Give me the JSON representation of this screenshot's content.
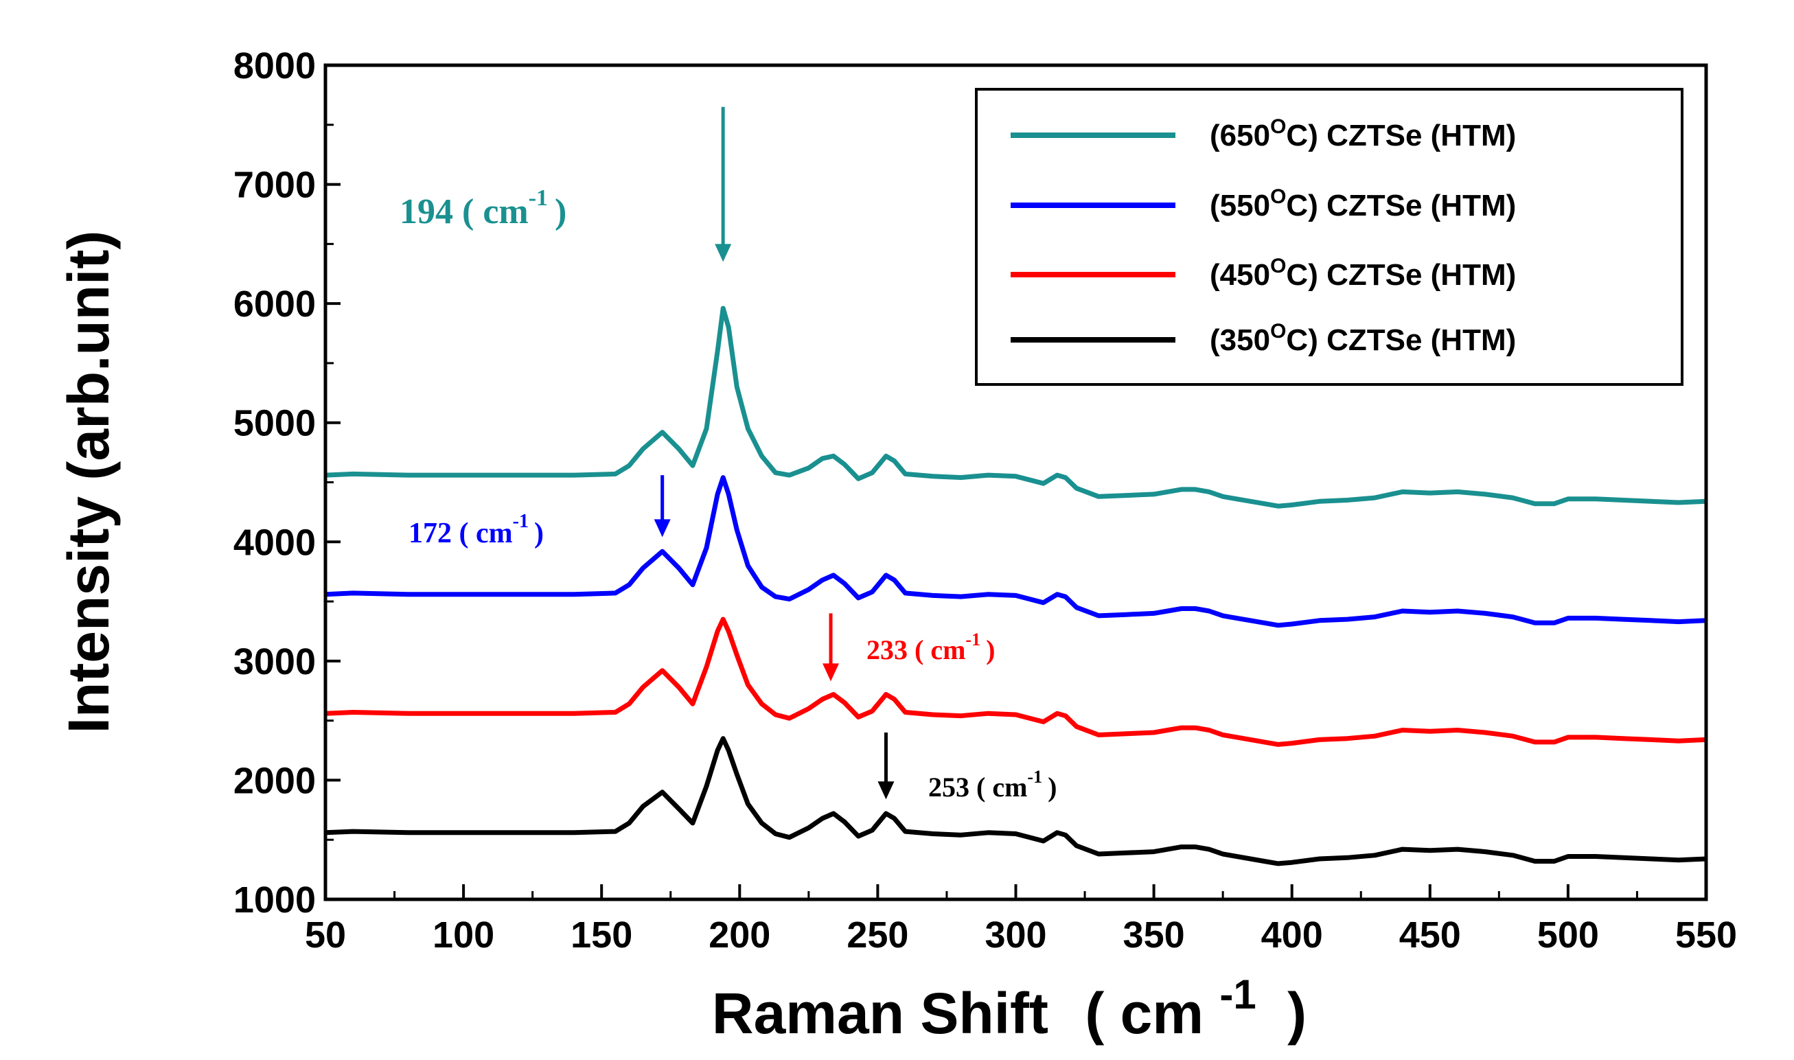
{
  "chart_data": {
    "type": "line",
    "title": "",
    "xlabel": "Raman Shift",
    "xlabel_unit": "( cm",
    "xlabel_unit_sup": "-1",
    "xlabel_unit_close": ")",
    "ylabel": "Intensity (arb.unit)",
    "xlim": [
      50,
      550
    ],
    "ylim": [
      1000,
      8000
    ],
    "xticks": [
      50,
      100,
      150,
      200,
      250,
      300,
      350,
      400,
      450,
      500,
      550
    ],
    "yticks": [
      1000,
      2000,
      3000,
      4000,
      5000,
      6000,
      7000,
      8000
    ],
    "legend_position": "top-right",
    "series": [
      {
        "name": "(650°C) CZTSe (HTM)",
        "label_prefix": "(650",
        "label_sup": "O",
        "label_suffix": "C) CZTSe (HTM)",
        "color": "#1a9090",
        "x": [
          50,
          60,
          80,
          100,
          120,
          140,
          155,
          160,
          165,
          172,
          178,
          183,
          188,
          192,
          194,
          196,
          199,
          203,
          208,
          213,
          218,
          225,
          230,
          234,
          238,
          243,
          248,
          253,
          256,
          260,
          270,
          280,
          290,
          300,
          310,
          315,
          318,
          322,
          330,
          340,
          350,
          355,
          360,
          365,
          370,
          375,
          380,
          390,
          395,
          400,
          410,
          420,
          430,
          440,
          450,
          460,
          470,
          480,
          488,
          495,
          500,
          510,
          520,
          530,
          540,
          550
        ],
        "y": [
          4560,
          4570,
          4560,
          4560,
          4560,
          4560,
          4570,
          4640,
          4780,
          4920,
          4780,
          4640,
          4950,
          5600,
          5960,
          5800,
          5300,
          4950,
          4720,
          4580,
          4560,
          4620,
          4700,
          4720,
          4650,
          4530,
          4580,
          4720,
          4680,
          4570,
          4550,
          4540,
          4560,
          4550,
          4490,
          4560,
          4540,
          4450,
          4380,
          4390,
          4400,
          4420,
          4440,
          4440,
          4420,
          4380,
          4360,
          4320,
          4300,
          4310,
          4340,
          4350,
          4370,
          4420,
          4410,
          4420,
          4400,
          4370,
          4320,
          4320,
          4360,
          4360,
          4350,
          4340,
          4330,
          4340
        ]
      },
      {
        "name": "(550°C) CZTSe (HTM)",
        "label_prefix": "(550",
        "label_sup": "O",
        "label_suffix": "C) CZTSe (HTM)",
        "color": "#0000ff",
        "x": [
          50,
          60,
          80,
          100,
          120,
          140,
          155,
          160,
          165,
          172,
          178,
          183,
          188,
          192,
          194,
          196,
          199,
          203,
          208,
          213,
          218,
          225,
          230,
          234,
          238,
          243,
          248,
          253,
          256,
          260,
          270,
          280,
          290,
          300,
          310,
          315,
          318,
          322,
          330,
          340,
          350,
          355,
          360,
          365,
          370,
          375,
          380,
          390,
          395,
          400,
          410,
          420,
          430,
          440,
          450,
          460,
          470,
          480,
          488,
          495,
          500,
          510,
          520,
          530,
          540,
          550
        ],
        "y": [
          3560,
          3570,
          3560,
          3560,
          3560,
          3560,
          3570,
          3640,
          3780,
          3920,
          3780,
          3640,
          3950,
          4400,
          4540,
          4400,
          4100,
          3800,
          3620,
          3540,
          3520,
          3600,
          3680,
          3720,
          3650,
          3530,
          3580,
          3720,
          3680,
          3570,
          3550,
          3540,
          3560,
          3550,
          3490,
          3560,
          3540,
          3450,
          3380,
          3390,
          3400,
          3420,
          3440,
          3440,
          3420,
          3380,
          3360,
          3320,
          3300,
          3310,
          3340,
          3350,
          3370,
          3420,
          3410,
          3420,
          3400,
          3370,
          3320,
          3320,
          3360,
          3360,
          3350,
          3340,
          3330,
          3340
        ]
      },
      {
        "name": "(450°C) CZTSe (HTM)",
        "label_prefix": "(450",
        "label_sup": "O",
        "label_suffix": "C) CZTSe (HTM)",
        "color": "#ff0000",
        "x": [
          50,
          60,
          80,
          100,
          120,
          140,
          155,
          160,
          165,
          172,
          178,
          183,
          188,
          192,
          194,
          196,
          199,
          203,
          208,
          213,
          218,
          225,
          230,
          234,
          238,
          243,
          248,
          253,
          256,
          260,
          270,
          280,
          290,
          300,
          310,
          315,
          318,
          322,
          330,
          340,
          350,
          355,
          360,
          365,
          370,
          375,
          380,
          390,
          395,
          400,
          410,
          420,
          430,
          440,
          450,
          460,
          470,
          480,
          488,
          495,
          500,
          510,
          520,
          530,
          540,
          550
        ],
        "y": [
          2560,
          2570,
          2560,
          2560,
          2560,
          2560,
          2570,
          2640,
          2780,
          2920,
          2780,
          2640,
          2950,
          3250,
          3350,
          3250,
          3050,
          2800,
          2640,
          2550,
          2520,
          2600,
          2680,
          2720,
          2650,
          2530,
          2580,
          2720,
          2680,
          2570,
          2550,
          2540,
          2560,
          2550,
          2490,
          2560,
          2540,
          2450,
          2380,
          2390,
          2400,
          2420,
          2440,
          2440,
          2420,
          2380,
          2360,
          2320,
          2300,
          2310,
          2340,
          2350,
          2370,
          2420,
          2410,
          2420,
          2400,
          2370,
          2320,
          2320,
          2360,
          2360,
          2350,
          2340,
          2330,
          2340
        ]
      },
      {
        "name": "(350°C) CZTSe (HTM)",
        "label_prefix": "(350",
        "label_sup": "O",
        "label_suffix": "C) CZTSe (HTM)",
        "color": "#000000",
        "x": [
          50,
          60,
          80,
          100,
          120,
          140,
          155,
          160,
          165,
          172,
          178,
          183,
          188,
          192,
          194,
          196,
          199,
          203,
          208,
          213,
          218,
          225,
          230,
          234,
          238,
          243,
          248,
          253,
          256,
          260,
          270,
          280,
          290,
          300,
          310,
          315,
          318,
          322,
          330,
          340,
          350,
          355,
          360,
          365,
          370,
          375,
          380,
          390,
          395,
          400,
          410,
          420,
          430,
          440,
          450,
          460,
          470,
          480,
          488,
          495,
          500,
          510,
          520,
          530,
          540,
          550
        ],
        "y": [
          1560,
          1570,
          1560,
          1560,
          1560,
          1560,
          1570,
          1640,
          1780,
          1900,
          1760,
          1640,
          1950,
          2250,
          2350,
          2250,
          2050,
          1800,
          1640,
          1550,
          1520,
          1600,
          1680,
          1720,
          1650,
          1530,
          1580,
          1720,
          1680,
          1570,
          1550,
          1540,
          1560,
          1550,
          1490,
          1560,
          1540,
          1450,
          1380,
          1390,
          1400,
          1420,
          1440,
          1440,
          1420,
          1380,
          1360,
          1320,
          1300,
          1310,
          1340,
          1350,
          1370,
          1420,
          1410,
          1420,
          1400,
          1370,
          1320,
          1320,
          1360,
          1360,
          1350,
          1340,
          1330,
          1340
        ]
      }
    ],
    "annotations": [
      {
        "id": "ann-194",
        "label": "194 ( cm",
        "sup": "-1",
        "close": ")",
        "color": "#1a9090",
        "arrow_x": 194,
        "arrow_y_from": 7650,
        "arrow_y_to": 6350
      },
      {
        "id": "ann-172",
        "label": "172 ( cm",
        "sup": "-1",
        "close": ")",
        "color": "#0000ff",
        "arrow_x": 172,
        "arrow_y_from": 4560,
        "arrow_y_to": 4040
      },
      {
        "id": "ann-233",
        "label": "233 ( cm",
        "sup": "-1",
        "close": ")",
        "color": "#ff0000",
        "arrow_x": 233,
        "arrow_y_from": 3400,
        "arrow_y_to": 2830
      },
      {
        "id": "ann-253",
        "label": "253 ( cm",
        "sup": "-1",
        "close": ")",
        "color": "#000000",
        "arrow_x": 253,
        "arrow_y_from": 2400,
        "arrow_y_to": 1840
      }
    ]
  }
}
